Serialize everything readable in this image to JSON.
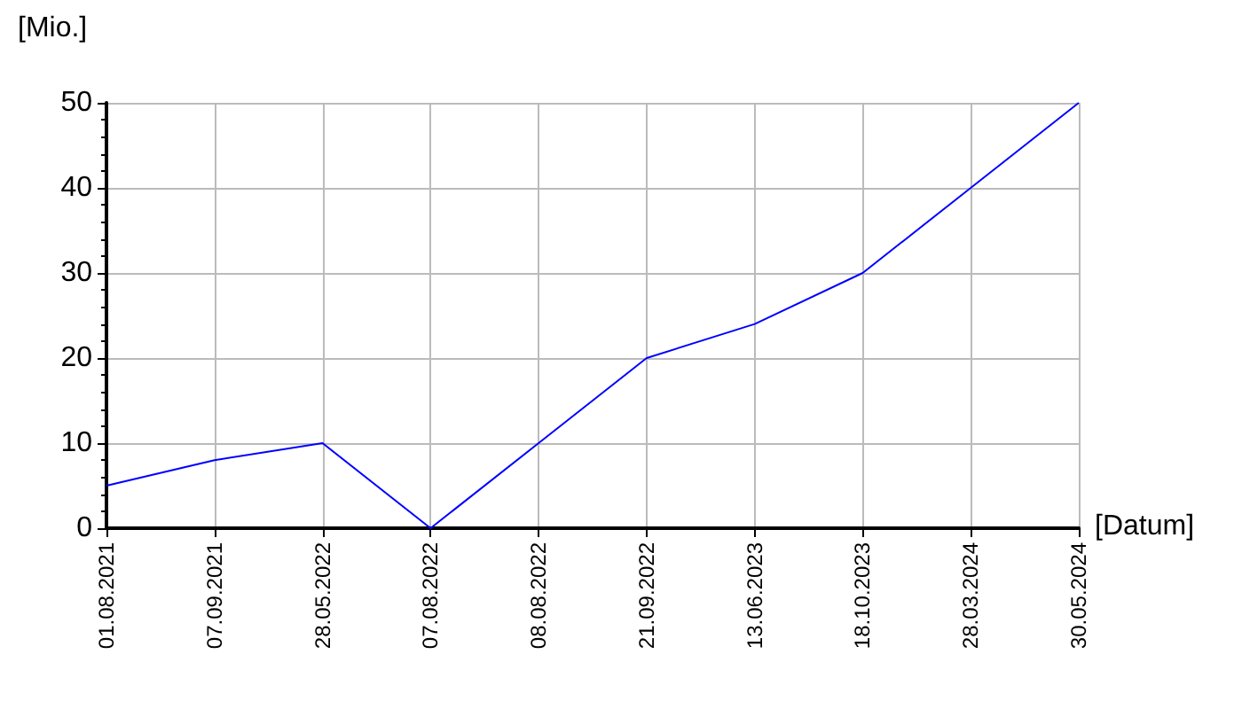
{
  "chart_data": {
    "type": "line",
    "xlabel": "[Datum]",
    "ylabel": "[Mio.]",
    "categories": [
      "01.08.2021",
      "07.09.2021",
      "28.05.2022",
      "07.08.2022",
      "08.08.2022",
      "21.09.2022",
      "13.06.2023",
      "18.10.2023",
      "28.03.2024",
      "30.05.2024"
    ],
    "series": [
      {
        "color": "#0000ff",
        "values": [
          5,
          8,
          10,
          0,
          10,
          20,
          24,
          30,
          40,
          50
        ]
      }
    ],
    "ylim": [
      0,
      50
    ],
    "yticks": [
      0,
      10,
      20,
      30,
      40,
      50
    ],
    "grid": true,
    "marker": "none",
    "line_style": "solid"
  }
}
